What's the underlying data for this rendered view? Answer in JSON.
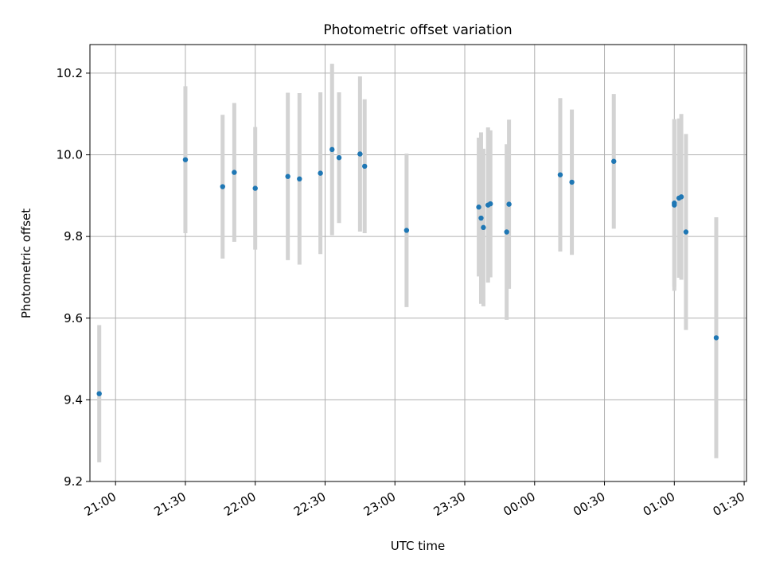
{
  "chart_data": {
    "type": "scatter",
    "title": "Photometric offset variation",
    "xlabel": "UTC time",
    "ylabel": "Photometric offset",
    "x_type": "time",
    "xlim": [
      "20:49",
      "01:31"
    ],
    "ylim": [
      9.2,
      10.27
    ],
    "x_ticks": [
      "21:00",
      "21:30",
      "22:00",
      "22:30",
      "23:00",
      "23:30",
      "00:00",
      "00:30",
      "01:00",
      "01:30"
    ],
    "y_ticks": [
      "9.2",
      "9.4",
      "9.6",
      "9.8",
      "10.0",
      "10.2"
    ],
    "grid": true,
    "marker_color": "#1f77b4",
    "errorbar_color": "#d3d3d3",
    "points": [
      {
        "x": "20:53",
        "y": 9.415,
        "err": 0.168
      },
      {
        "x": "21:30",
        "y": 9.988,
        "err": 0.18
      },
      {
        "x": "21:46",
        "y": 9.922,
        "err": 0.176
      },
      {
        "x": "21:51",
        "y": 9.957,
        "err": 0.17
      },
      {
        "x": "22:00",
        "y": 9.918,
        "err": 0.15
      },
      {
        "x": "22:14",
        "y": 9.947,
        "err": 0.205
      },
      {
        "x": "22:19",
        "y": 9.941,
        "err": 0.21
      },
      {
        "x": "22:28",
        "y": 9.955,
        "err": 0.198
      },
      {
        "x": "22:33",
        "y": 10.013,
        "err": 0.21
      },
      {
        "x": "22:36",
        "y": 9.993,
        "err": 0.16
      },
      {
        "x": "22:45",
        "y": 10.002,
        "err": 0.19
      },
      {
        "x": "22:47",
        "y": 9.972,
        "err": 0.164
      },
      {
        "x": "23:05",
        "y": 9.815,
        "err": 0.188
      },
      {
        "x": "23:36",
        "y": 9.872,
        "err": 0.17
      },
      {
        "x": "23:37",
        "y": 9.845,
        "err": 0.21
      },
      {
        "x": "23:38",
        "y": 9.822,
        "err": 0.193
      },
      {
        "x": "23:40",
        "y": 9.877,
        "err": 0.19
      },
      {
        "x": "23:41",
        "y": 9.88,
        "err": 0.18
      },
      {
        "x": "23:48",
        "y": 9.811,
        "err": 0.215
      },
      {
        "x": "23:49",
        "y": 9.879,
        "err": 0.207
      },
      {
        "x": "00:11",
        "y": 9.951,
        "err": 0.188
      },
      {
        "x": "00:16",
        "y": 9.933,
        "err": 0.178
      },
      {
        "x": "00:34",
        "y": 9.984,
        "err": 0.165
      },
      {
        "x": "01:00",
        "y": 9.877,
        "err": 0.21
      },
      {
        "x": "01:00",
        "y": 9.882,
        "err": 0.205
      },
      {
        "x": "01:02",
        "y": 9.894,
        "err": 0.195
      },
      {
        "x": "01:03",
        "y": 9.897,
        "err": 0.203
      },
      {
        "x": "01:05",
        "y": 9.811,
        "err": 0.24
      },
      {
        "x": "01:18",
        "y": 9.552,
        "err": 0.295
      }
    ]
  }
}
